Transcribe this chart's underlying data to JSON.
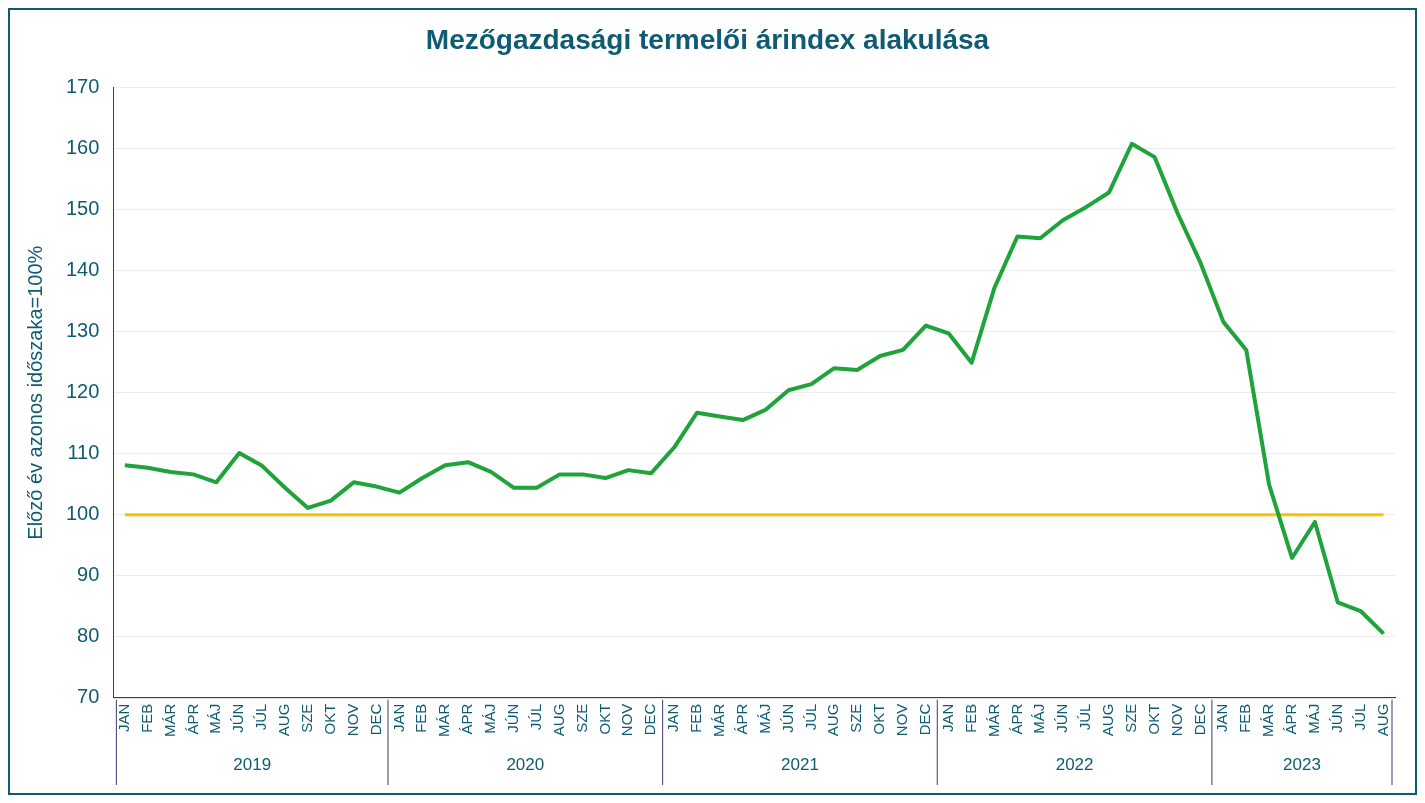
{
  "chart_data": {
    "type": "line",
    "title": "Mezőgazdasági termelői árindex alakulása",
    "ylabel": "Előző év azonos időszaka=100%",
    "categories": [
      "JAN",
      "FEB",
      "MÁR",
      "ÁPR",
      "MÁJ",
      "JÚN",
      "JÚL",
      "AUG",
      "SZE",
      "OKT",
      "NOV",
      "DEC",
      "JAN",
      "FEB",
      "MÁR",
      "ÁPR",
      "MÁJ",
      "JÚN",
      "JÚL",
      "AUG",
      "SZE",
      "OKT",
      "NOV",
      "DEC",
      "JAN",
      "FEB",
      "MÁR",
      "ÁPR",
      "MÁJ",
      "JÚN",
      "JÚL",
      "AUG",
      "SZE",
      "OKT",
      "NOV",
      "DEC",
      "JAN",
      "FEB",
      "MÁR",
      "ÁPR",
      "MÁJ",
      "JÚN",
      "JÚL",
      "AUG",
      "SZE",
      "OKT",
      "NOV",
      "DEC",
      "JAN",
      "FEB",
      "MÁR",
      "ÁPR",
      "MÁJ",
      "JÚN",
      "JÚL",
      "AUG"
    ],
    "series": [
      {
        "color": "#1fa33a",
        "values": [
          108.1,
          107.7,
          107.0,
          106.6,
          105.3,
          110.1,
          108.0,
          104.4,
          101.1,
          102.3,
          105.3,
          104.6,
          103.6,
          106.0,
          108.1,
          108.6,
          107.0,
          104.4,
          104.4,
          106.6,
          106.6,
          106.0,
          107.3,
          106.8,
          111.0,
          116.7,
          116.1,
          115.5,
          117.2,
          120.4,
          121.4,
          124.0,
          123.7,
          126.0,
          127.0,
          131.0,
          129.7,
          124.9,
          137.2,
          145.6,
          145.3,
          148.3,
          150.4,
          152.8,
          160.8,
          158.6,
          149.4,
          141.3,
          131.6,
          127.0,
          104.9,
          92.9,
          98.8,
          85.6,
          84.2,
          80.5
        ]
      }
    ],
    "ref_lines": [
      {
        "axis": "y",
        "value": 100,
        "color": "#ffc000"
      }
    ],
    "annotations": [
      "2019",
      "2020",
      "2021",
      "2022",
      "2023"
    ],
    "ylim": [
      70,
      170
    ],
    "yticks": [
      70,
      80,
      90,
      100,
      110,
      120,
      130,
      140,
      150,
      160,
      170
    ],
    "grid": "y",
    "legend": false,
    "marker": "none",
    "line_style": "solid"
  }
}
